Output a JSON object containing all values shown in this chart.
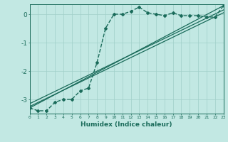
{
  "xlabel": "Humidex (Indice chaleur)",
  "ylabel": "",
  "bg_color": "#c2e8e3",
  "line_color": "#1a6b5a",
  "grid_color": "#a0cfc9",
  "x_ticks": [
    0,
    1,
    2,
    3,
    4,
    5,
    6,
    7,
    8,
    9,
    10,
    11,
    12,
    13,
    14,
    15,
    16,
    17,
    18,
    19,
    20,
    21,
    22,
    23
  ],
  "y_ticks": [
    0,
    -1,
    -2,
    -3
  ],
  "xlim": [
    0,
    23
  ],
  "ylim": [
    -3.5,
    0.35
  ],
  "lines": [
    {
      "x": [
        0,
        1,
        2,
        3,
        4,
        5,
        6,
        7,
        8,
        9,
        10,
        11,
        12,
        13,
        14,
        15,
        16,
        17,
        18,
        19,
        20,
        21,
        22,
        23
      ],
      "y": [
        -3.3,
        -3.4,
        -3.4,
        -3.1,
        -3.0,
        -3.0,
        -2.7,
        -2.6,
        -1.7,
        -0.5,
        0.0,
        0.0,
        0.1,
        0.25,
        0.05,
        0.0,
        -0.05,
        0.05,
        -0.05,
        -0.05,
        -0.05,
        -0.1,
        -0.1,
        0.3
      ],
      "marker": "D",
      "markersize": 2.0,
      "linewidth": 1.0,
      "dashed": true
    },
    {
      "x": [
        0,
        23
      ],
      "y": [
        -3.3,
        0.3
      ],
      "marker": null,
      "linewidth": 0.9,
      "dashed": false
    },
    {
      "x": [
        0,
        23
      ],
      "y": [
        -3.25,
        0.05
      ],
      "marker": null,
      "linewidth": 0.9,
      "dashed": false
    },
    {
      "x": [
        0,
        23
      ],
      "y": [
        -3.15,
        0.15
      ],
      "marker": null,
      "linewidth": 0.9,
      "dashed": false
    }
  ]
}
